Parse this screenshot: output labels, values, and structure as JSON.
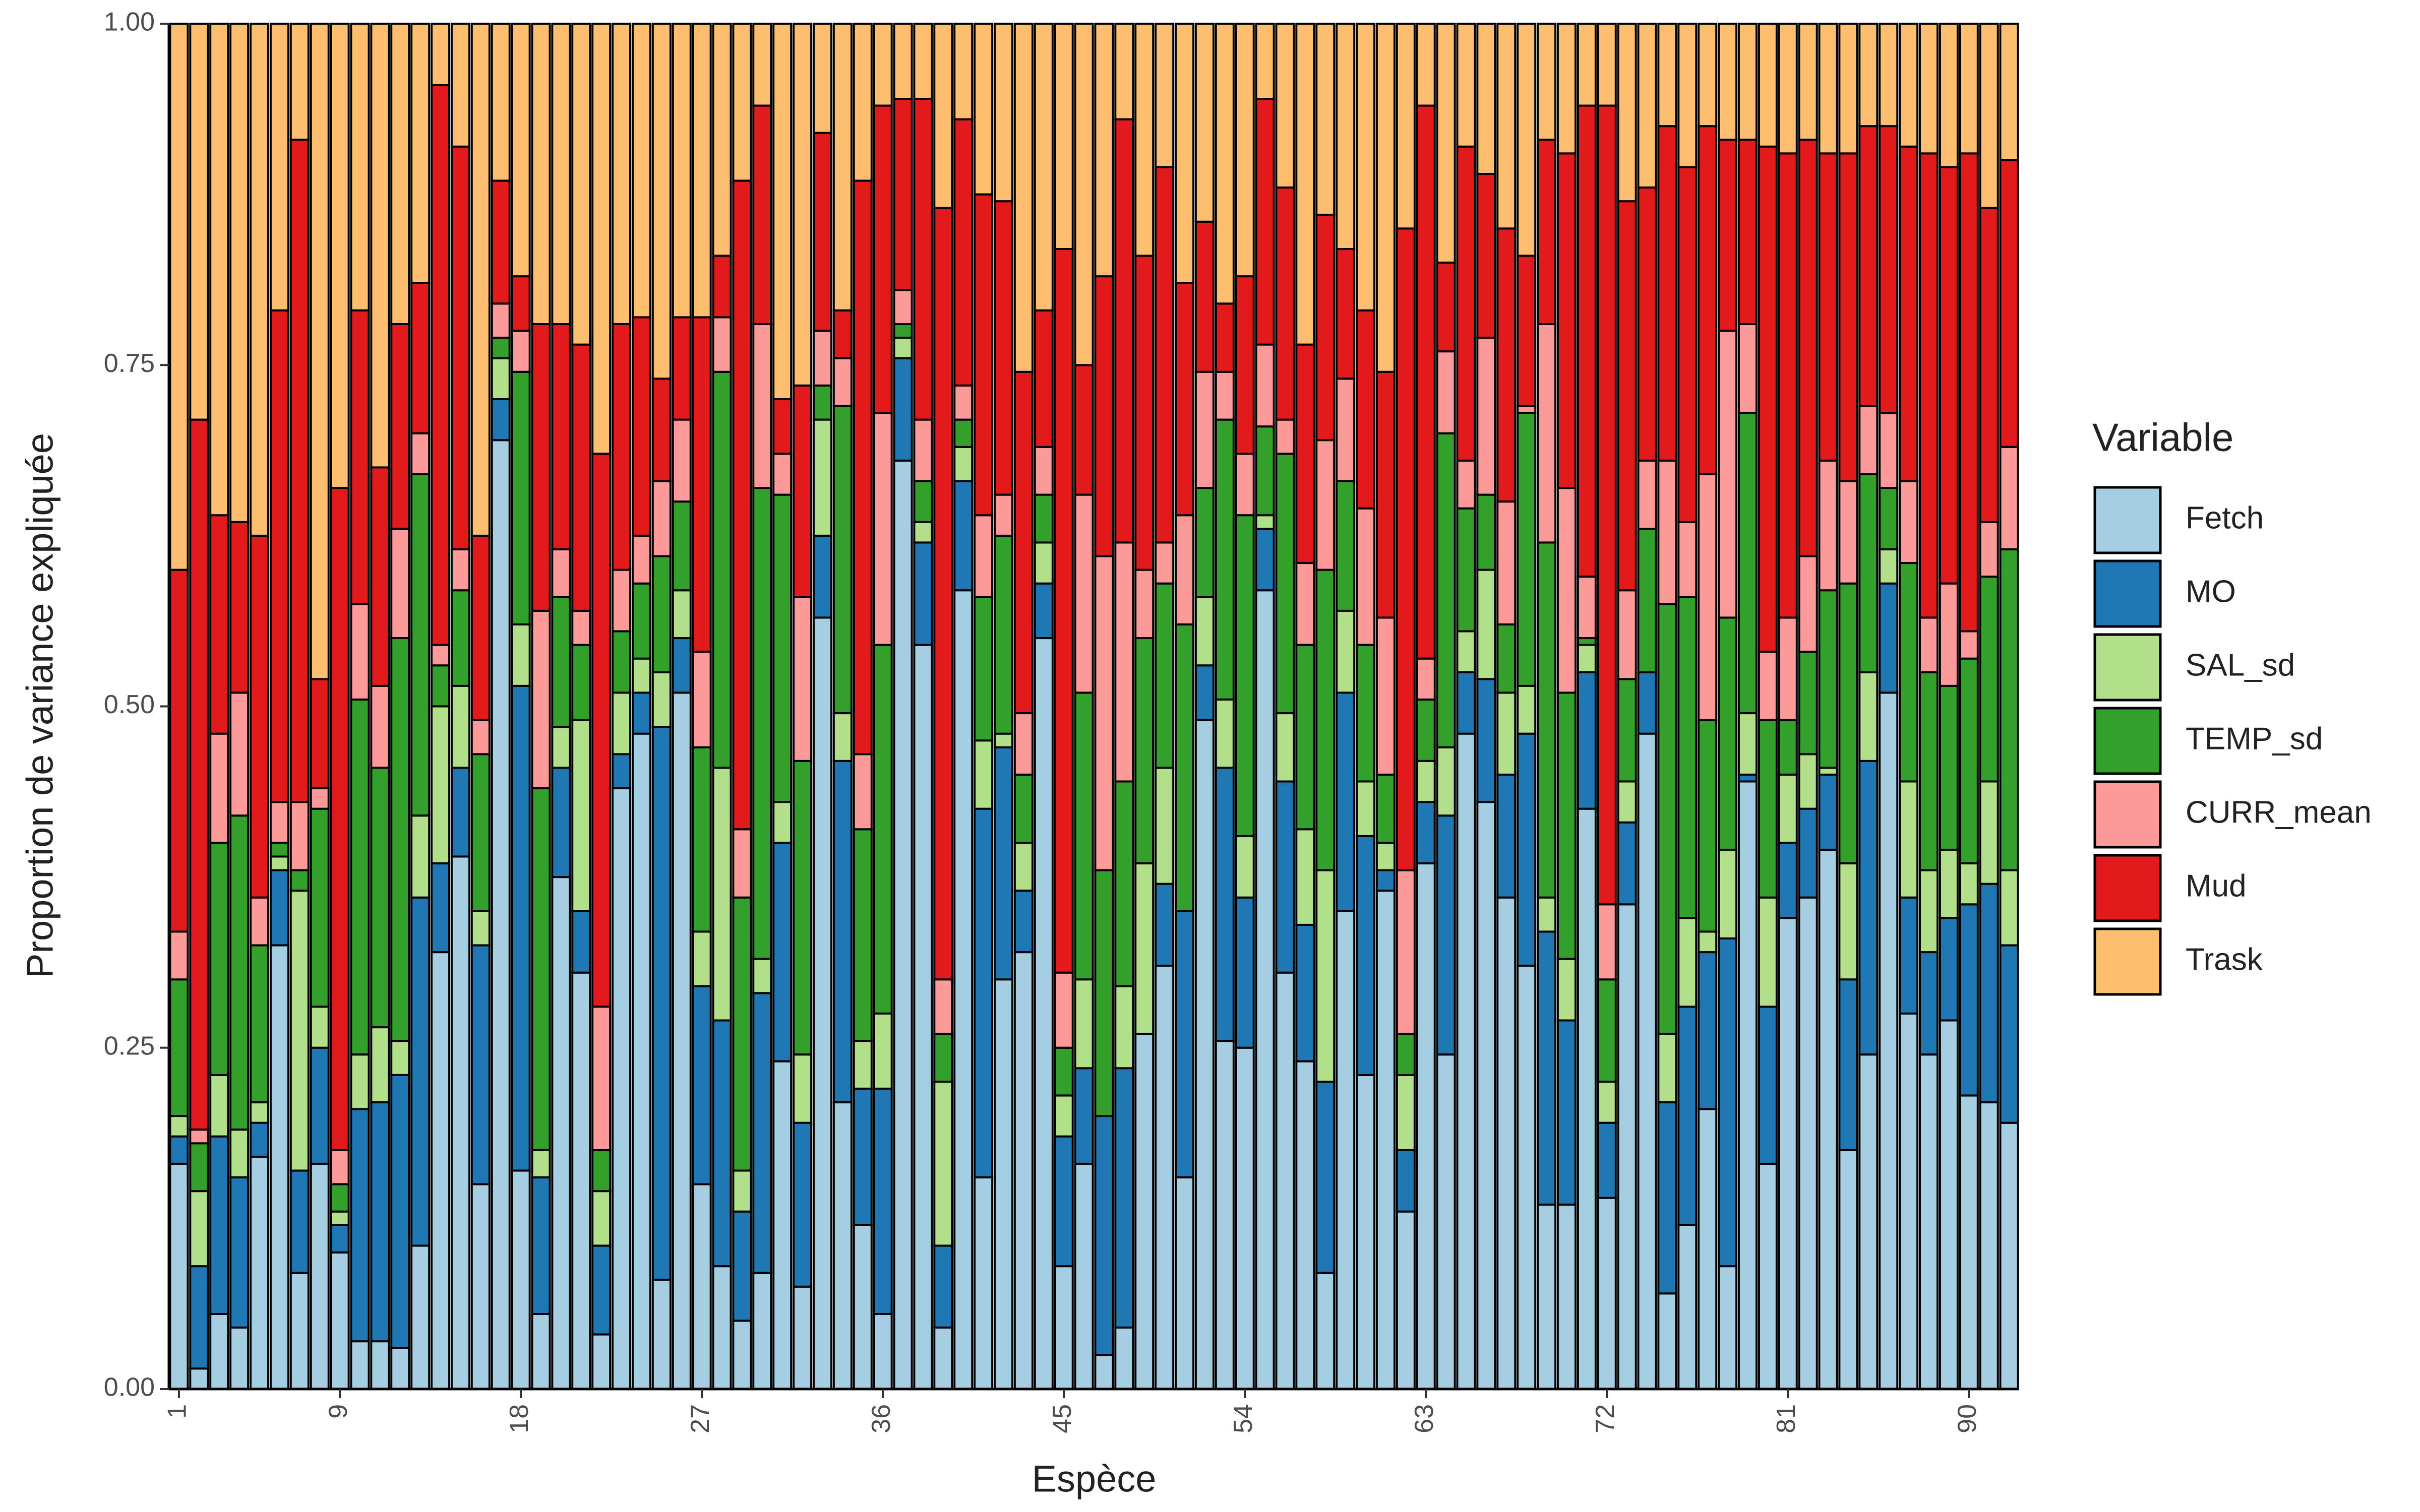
{
  "chart_data": {
    "type": "stacked_bar",
    "x_label": "Espèce",
    "y_label": "Proportion de variance expliquée",
    "legend_title": "Variable",
    "legend_position": "right",
    "categories": [
      1,
      null,
      null,
      null,
      null,
      null,
      null,
      null,
      9,
      null,
      null,
      null,
      null,
      null,
      null,
      null,
      null,
      18,
      null,
      null,
      null,
      null,
      null,
      null,
      null,
      null,
      27,
      null,
      null,
      null,
      null,
      null,
      null,
      null,
      null,
      36,
      null,
      null,
      null,
      null,
      null,
      null,
      null,
      null,
      45,
      null,
      null,
      null,
      null,
      null,
      null,
      null,
      null,
      54,
      null,
      null,
      null,
      null,
      null,
      null,
      null,
      null,
      63,
      null,
      null,
      null,
      null,
      null,
      null,
      null,
      null,
      72,
      null,
      null,
      null,
      null,
      null,
      null,
      null,
      null,
      81,
      null,
      null,
      null,
      null,
      null,
      null,
      null,
      null,
      90,
      null,
      null
    ],
    "ylim": [
      0,
      1
    ],
    "yticks": [
      {
        "value": 0,
        "label": "0.00"
      },
      {
        "value": 0.25,
        "label": "0.25"
      },
      {
        "value": 0.5,
        "label": "0.50"
      },
      {
        "value": 0.75,
        "label": "0.75"
      },
      {
        "value": 1,
        "label": "1.00"
      }
    ],
    "grid": false,
    "series": [
      {
        "name": "Fetch",
        "color": "#a6cee3",
        "values": [
          0.165,
          0.015,
          0.055,
          0.045,
          0.17,
          0.325,
          0.085,
          0.165,
          0.1,
          0.035,
          0.035,
          0.03,
          0.105,
          0.32,
          0.39,
          0.15,
          0.695,
          0.16,
          0.055,
          0.375,
          0.305,
          0.04,
          0.44,
          0.48,
          0.08,
          0.51,
          0.15,
          0.09,
          0.05,
          0.085,
          0.24,
          0.075,
          0.565,
          0.21,
          0.12,
          0.055,
          0.68,
          0.545,
          0.045,
          0.585,
          0.155,
          0.3,
          0.32,
          0.55,
          0.09,
          0.165,
          0.025,
          0.045,
          0.26,
          0.31,
          0.155,
          0.49,
          0.255,
          0.25,
          0.585,
          0.305,
          0.24,
          0.085,
          0.35,
          0.23,
          0.365,
          0.13,
          0.385,
          0.245,
          0.48,
          0.43,
          0.36,
          0.31,
          0.135,
          0.135,
          0.425,
          0.14,
          0.355,
          0.48,
          0.07,
          0.12,
          0.205,
          0.09,
          0.445,
          0.165,
          0.345,
          0.36,
          0.395,
          0.175,
          0.245,
          0.51,
          0.275,
          0.245,
          0.27,
          0.215,
          0.21,
          0.195
        ]
      },
      {
        "name": "MO",
        "color": "#1f78b4",
        "values": [
          0.02,
          0.075,
          0.13,
          0.11,
          0.025,
          0.055,
          0.075,
          0.085,
          0.02,
          0.17,
          0.175,
          0.2,
          0.255,
          0.065,
          0.065,
          0.175,
          0.03,
          0.355,
          0.1,
          0.08,
          0.045,
          0.065,
          0.025,
          0.03,
          0.405,
          0.04,
          0.145,
          0.18,
          0.08,
          0.205,
          0.16,
          0.12,
          0.06,
          0.25,
          0.1,
          0.165,
          0.075,
          0.075,
          0.06,
          0.08,
          0.27,
          0.17,
          0.045,
          0.04,
          0.095,
          0.07,
          0.175,
          0.19,
          0,
          0.06,
          0.195,
          0.04,
          0.2,
          0.11,
          0.045,
          0.14,
          0.1,
          0.14,
          0.16,
          0.175,
          0.015,
          0.045,
          0.045,
          0.175,
          0.045,
          0.09,
          0.09,
          0.17,
          0.2,
          0.135,
          0.1,
          0.055,
          0.06,
          0.045,
          0.14,
          0.16,
          0.115,
          0.24,
          0.005,
          0.115,
          0.055,
          0.065,
          0.055,
          0.125,
          0.215,
          0.08,
          0.085,
          0.075,
          0.075,
          0.14,
          0.16,
          0.13
        ]
      },
      {
        "name": "SAL_sd",
        "color": "#b2df8a",
        "values": [
          0.015,
          0.055,
          0.045,
          0.035,
          0.015,
          0.01,
          0.205,
          0.03,
          0.01,
          0.04,
          0.055,
          0.025,
          0.06,
          0.115,
          0.06,
          0.025,
          0.03,
          0.045,
          0.02,
          0.03,
          0.14,
          0.04,
          0.045,
          0.025,
          0.04,
          0.035,
          0.04,
          0.185,
          0.03,
          0.025,
          0.03,
          0.05,
          0.085,
          0.035,
          0.035,
          0.055,
          0.015,
          0.015,
          0.12,
          0.025,
          0.05,
          0.01,
          0.035,
          0.03,
          0.03,
          0.065,
          0,
          0.06,
          0.125,
          0.085,
          0,
          0.05,
          0.05,
          0.045,
          0.01,
          0.05,
          0.07,
          0.155,
          0.06,
          0.04,
          0.02,
          0.055,
          0.03,
          0.05,
          0.03,
          0.08,
          0.06,
          0.035,
          0.025,
          0.045,
          0.02,
          0.03,
          0.03,
          0,
          0.05,
          0.065,
          0.015,
          0.065,
          0.045,
          0.08,
          0.05,
          0.04,
          0.005,
          0.085,
          0.065,
          0.025,
          0.085,
          0.06,
          0.05,
          0.03,
          0.075,
          0.055
        ]
      },
      {
        "name": "TEMP_sd",
        "color": "#33a02c",
        "values": [
          0.1,
          0.035,
          0.17,
          0.23,
          0.115,
          0.01,
          0.015,
          0.145,
          0.02,
          0.26,
          0.19,
          0.295,
          0.25,
          0.03,
          0.07,
          0.115,
          0.015,
          0.185,
          0.265,
          0.095,
          0.055,
          0.03,
          0.045,
          0.055,
          0.085,
          0.065,
          0.135,
          0.29,
          0.2,
          0.345,
          0.225,
          0.215,
          0.025,
          0.225,
          0.155,
          0.27,
          0.01,
          0.03,
          0.035,
          0.02,
          0.105,
          0.145,
          0.05,
          0.035,
          0.035,
          0.21,
          0.18,
          0.15,
          0.165,
          0.135,
          0.21,
          0.08,
          0.205,
          0.235,
          0.065,
          0.19,
          0.135,
          0.22,
          0.095,
          0.1,
          0.05,
          0.03,
          0.045,
          0.23,
          0.09,
          0.055,
          0.05,
          0.2,
          0.26,
          0.195,
          0.005,
          0.075,
          0.075,
          0.105,
          0.315,
          0.235,
          0.155,
          0.17,
          0.22,
          0.13,
          0.04,
          0.075,
          0.13,
          0.205,
          0.145,
          0.045,
          0.16,
          0.145,
          0.12,
          0.15,
          0.15,
          0.235
        ]
      },
      {
        "name": "CURR_mean",
        "color": "#fb9a99",
        "values": [
          0.035,
          0.01,
          0.08,
          0.09,
          0.035,
          0.03,
          0.05,
          0.015,
          0.025,
          0.07,
          0.06,
          0.08,
          0.03,
          0.015,
          0.03,
          0.025,
          0.025,
          0.03,
          0.13,
          0.035,
          0.025,
          0.105,
          0.045,
          0.035,
          0.055,
          0.06,
          0.07,
          0.04,
          0.05,
          0.12,
          0.03,
          0.12,
          0.04,
          0.035,
          0.055,
          0.17,
          0.025,
          0.045,
          0.04,
          0.025,
          0.06,
          0.03,
          0.045,
          0.035,
          0.055,
          0.145,
          0.23,
          0.175,
          0.05,
          0.03,
          0.08,
          0.085,
          0.035,
          0.045,
          0.06,
          0.025,
          0.06,
          0.095,
          0.075,
          0.1,
          0.115,
          0.12,
          0.03,
          0.06,
          0.035,
          0.115,
          0.09,
          0.005,
          0.16,
          0.15,
          0.045,
          0.055,
          0.065,
          0.05,
          0.105,
          0.055,
          0.18,
          0.21,
          0.065,
          0.05,
          0.075,
          0.07,
          0.095,
          0.075,
          0.05,
          0.055,
          0.06,
          0.04,
          0.075,
          0.02,
          0.04,
          0.075
        ]
      },
      {
        "name": "Mud",
        "color": "#e31a1c",
        "values": [
          0.265,
          0.52,
          0.16,
          0.125,
          0.265,
          0.36,
          0.485,
          0.08,
          0.485,
          0.215,
          0.16,
          0.15,
          0.11,
          0.41,
          0.295,
          0.135,
          0.09,
          0.04,
          0.21,
          0.165,
          0.195,
          0.405,
          0.18,
          0.16,
          0.075,
          0.075,
          0.245,
          0.045,
          0.475,
          0.16,
          0.04,
          0.155,
          0.145,
          0.035,
          0.42,
          0.225,
          0.14,
          0.235,
          0.565,
          0.195,
          0.235,
          0.215,
          0.25,
          0.1,
          0.53,
          0.095,
          0.205,
          0.31,
          0.23,
          0.275,
          0.17,
          0.11,
          0.05,
          0.13,
          0.18,
          0.17,
          0.16,
          0.165,
          0.095,
          0.145,
          0.18,
          0.47,
          0.405,
          0.065,
          0.23,
          0.12,
          0.2,
          0.11,
          0.135,
          0.245,
          0.345,
          0.585,
          0.285,
          0.2,
          0.245,
          0.26,
          0.255,
          0.14,
          0.135,
          0.37,
          0.34,
          0.305,
          0.225,
          0.24,
          0.205,
          0.21,
          0.245,
          0.34,
          0.305,
          0.35,
          0.23,
          0.21
        ]
      },
      {
        "name": "Trask",
        "color": "#fdbf6f",
        "values": [
          0.4,
          0.29,
          0.36,
          0.365,
          0.375,
          0.21,
          0.085,
          0.48,
          0.34,
          0.21,
          0.325,
          0.22,
          0.19,
          0.045,
          0.09,
          0.375,
          0.115,
          0.185,
          0.22,
          0.22,
          0.235,
          0.315,
          0.22,
          0.215,
          0.26,
          0.215,
          0.215,
          0.17,
          0.115,
          0.06,
          0.275,
          0.265,
          0.08,
          0.21,
          0.115,
          0.06,
          0.055,
          0.055,
          0.135,
          0.07,
          0.125,
          0.13,
          0.255,
          0.21,
          0.165,
          0.25,
          0.185,
          0.07,
          0.17,
          0.105,
          0.19,
          0.145,
          0.205,
          0.185,
          0.055,
          0.12,
          0.235,
          0.14,
          0.165,
          0.21,
          0.255,
          0.15,
          0.06,
          0.175,
          0.09,
          0.11,
          0.15,
          0.17,
          0.085,
          0.095,
          0.06,
          0.06,
          0.13,
          0.12,
          0.075,
          0.105,
          0.075,
          0.085,
          0.085,
          0.09,
          0.095,
          0.085,
          0.095,
          0.095,
          0.075,
          0.075,
          0.09,
          0.095,
          0.105,
          0.095,
          0.135,
          0.1
        ]
      }
    ]
  }
}
